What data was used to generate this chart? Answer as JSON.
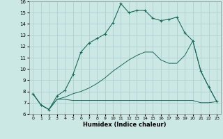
{
  "xlabel": "Humidex (Indice chaleur)",
  "xlim": [
    -0.5,
    23.5
  ],
  "ylim": [
    6,
    16
  ],
  "xticks": [
    0,
    1,
    2,
    3,
    4,
    5,
    6,
    7,
    8,
    9,
    10,
    11,
    12,
    13,
    14,
    15,
    16,
    17,
    18,
    19,
    20,
    21,
    22,
    23
  ],
  "yticks": [
    6,
    7,
    8,
    9,
    10,
    11,
    12,
    13,
    14,
    15,
    16
  ],
  "bg_color": "#cce8e4",
  "grid_color": "#aacccc",
  "line_color": "#1a6b5a",
  "series1_x": [
    0,
    1,
    2,
    3,
    4,
    5,
    6,
    7,
    8,
    9,
    10,
    11,
    12,
    13,
    14,
    15,
    16,
    17,
    18,
    19,
    20,
    21,
    22,
    23
  ],
  "series1_y": [
    7.8,
    6.8,
    6.4,
    7.6,
    8.1,
    9.5,
    11.5,
    12.3,
    12.7,
    13.1,
    14.1,
    15.8,
    15.0,
    15.2,
    15.2,
    14.5,
    14.3,
    14.4,
    14.6,
    13.2,
    12.5,
    9.8,
    8.4,
    7.1
  ],
  "series2_x": [
    0,
    1,
    2,
    3,
    4,
    5,
    6,
    7,
    8,
    9,
    10,
    11,
    12,
    13,
    14,
    15,
    16,
    17,
    18,
    19,
    20,
    21,
    22,
    23
  ],
  "series2_y": [
    7.8,
    6.8,
    6.4,
    7.3,
    7.3,
    7.2,
    7.2,
    7.2,
    7.2,
    7.2,
    7.2,
    7.2,
    7.2,
    7.2,
    7.2,
    7.2,
    7.2,
    7.2,
    7.2,
    7.2,
    7.2,
    7.0,
    7.0,
    7.1
  ],
  "series3_x": [
    0,
    1,
    2,
    3,
    4,
    5,
    6,
    7,
    8,
    9,
    10,
    11,
    12,
    13,
    14,
    15,
    16,
    17,
    18,
    19,
    20,
    21,
    22,
    23
  ],
  "series3_y": [
    7.8,
    6.8,
    6.4,
    7.3,
    7.5,
    7.8,
    8.0,
    8.3,
    8.7,
    9.2,
    9.8,
    10.3,
    10.8,
    11.2,
    11.5,
    11.5,
    10.8,
    10.5,
    10.5,
    11.2,
    12.5,
    9.8,
    8.4,
    7.1
  ]
}
